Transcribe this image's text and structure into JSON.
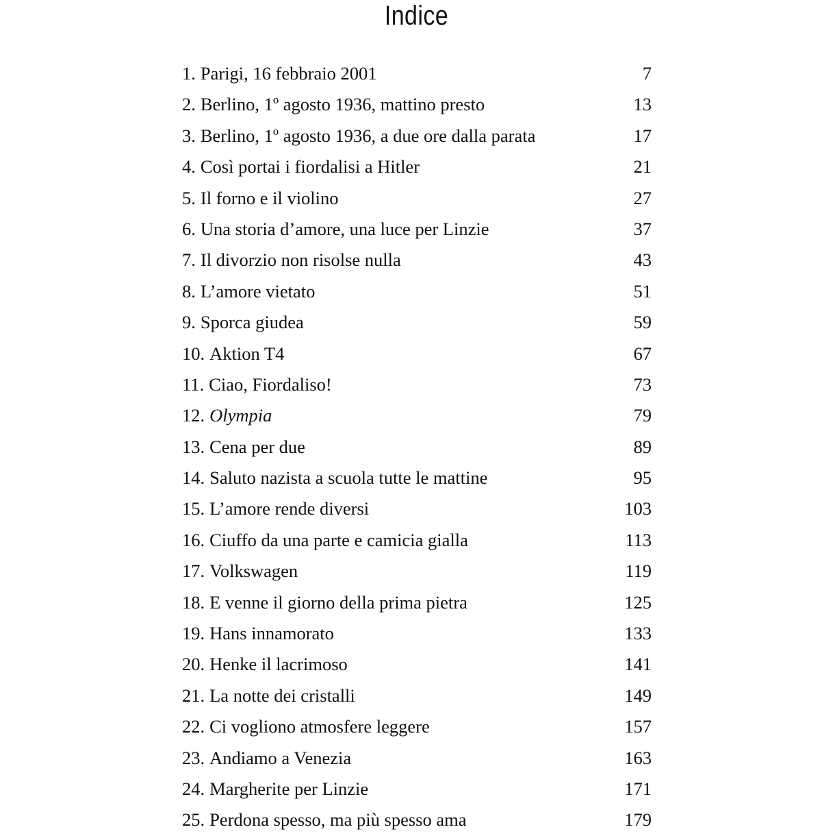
{
  "title": "Indice",
  "entries": [
    {
      "num": "1.",
      "text": "Parigi, 16 febbraio 2001",
      "page": "7"
    },
    {
      "num": "2.",
      "text": "Berlino, 1º agosto 1936, mattino presto",
      "page": "13"
    },
    {
      "num": "3.",
      "text": "Berlino, 1º agosto 1936, a due ore dalla parata",
      "page": "17"
    },
    {
      "num": "4.",
      "text": "Così portai i fiordalisi a Hitler",
      "page": "21"
    },
    {
      "num": "5.",
      "text": "Il forno e il violino",
      "page": "27"
    },
    {
      "num": "6.",
      "text": "Una storia d’amore, una luce per Linzie",
      "page": "37"
    },
    {
      "num": "7.",
      "text": "Il divorzio non risolse nulla",
      "page": "43"
    },
    {
      "num": "8.",
      "text": "L’amore vietato",
      "page": "51"
    },
    {
      "num": "9.",
      "text": "Sporca giudea",
      "page": "59"
    },
    {
      "num": "10.",
      "text": "Aktion T4",
      "page": "67"
    },
    {
      "num": "11.",
      "text": "Ciao, Fiordaliso!",
      "page": "73"
    },
    {
      "num": "12.",
      "text": "Olympia",
      "page": "79",
      "italic": true
    },
    {
      "num": "13.",
      "text": "Cena per due",
      "page": "89"
    },
    {
      "num": "14.",
      "text": "Saluto nazista a scuola tutte le mattine",
      "page": "95"
    },
    {
      "num": "15.",
      "text": "L’amore rende diversi",
      "page": "103"
    },
    {
      "num": "16.",
      "text": "Ciuffo da una parte e camicia gialla",
      "page": "113"
    },
    {
      "num": "17.",
      "text": "Volkswagen",
      "page": "119"
    },
    {
      "num": "18.",
      "text": "E venne il giorno della prima pietra",
      "page": "125"
    },
    {
      "num": "19.",
      "text": "Hans innamorato",
      "page": "133"
    },
    {
      "num": "20.",
      "text": "Henke il lacrimoso",
      "page": "141"
    },
    {
      "num": "21.",
      "text": "La notte dei cristalli",
      "page": "149"
    },
    {
      "num": "22.",
      "text": "Ci vogliono atmosfere leggere",
      "page": "157"
    },
    {
      "num": "23.",
      "text": "Andiamo a Venezia",
      "page": "163"
    },
    {
      "num": "24.",
      "text": "Margherite per Linzie",
      "page": "171"
    },
    {
      "num": "25.",
      "text": "Perdona spesso, ma più spesso ama",
      "page": "179"
    }
  ]
}
